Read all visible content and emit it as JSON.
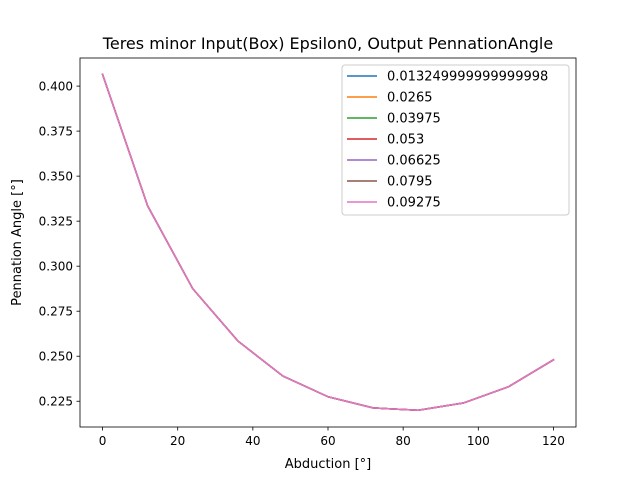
{
  "chart_data": {
    "type": "line",
    "title": "Teres minor Input(Box) Epsilon0, Output PennationAngle",
    "xlabel": "Abduction [°]",
    "ylabel": "Pennation Angle [°]",
    "xlim": [
      -6,
      126
    ],
    "ylim": [
      0.2107,
      0.4156
    ],
    "xticks": [
      0,
      20,
      40,
      60,
      80,
      100,
      120
    ],
    "xtick_labels": [
      "0",
      "20",
      "40",
      "60",
      "80",
      "100",
      "120"
    ],
    "yticks": [
      0.225,
      0.25,
      0.275,
      0.3,
      0.325,
      0.35,
      0.375,
      0.4
    ],
    "ytick_labels": [
      "0.225",
      "0.250",
      "0.275",
      "0.300",
      "0.325",
      "0.350",
      "0.375",
      "0.400"
    ],
    "grid": false,
    "legend_position": "top-right",
    "x": [
      0,
      12,
      24,
      36,
      48,
      60,
      72,
      84,
      96,
      108,
      120
    ],
    "series": [
      {
        "name": "0.013249999999999998",
        "color": "#1f77b4",
        "values": [
          0.4065,
          0.3335,
          0.2875,
          0.2585,
          0.239,
          0.2275,
          0.2213,
          0.22,
          0.224,
          0.233,
          0.248
        ]
      },
      {
        "name": "0.0265",
        "color": "#ff7f0e",
        "values": [
          0.4065,
          0.3335,
          0.2875,
          0.2585,
          0.239,
          0.2275,
          0.2213,
          0.22,
          0.224,
          0.233,
          0.248
        ]
      },
      {
        "name": "0.03975",
        "color": "#2ca02c",
        "values": [
          0.4065,
          0.3335,
          0.2875,
          0.2585,
          0.239,
          0.2275,
          0.2213,
          0.22,
          0.224,
          0.233,
          0.248
        ]
      },
      {
        "name": "0.053",
        "color": "#d62728",
        "values": [
          0.4065,
          0.3335,
          0.2875,
          0.2585,
          0.239,
          0.2275,
          0.2213,
          0.22,
          0.224,
          0.233,
          0.248
        ]
      },
      {
        "name": "0.06625",
        "color": "#9467bd",
        "values": [
          0.4065,
          0.3335,
          0.2875,
          0.2585,
          0.239,
          0.2275,
          0.2213,
          0.22,
          0.224,
          0.233,
          0.248
        ]
      },
      {
        "name": "0.0795",
        "color": "#8c564b",
        "values": [
          0.4065,
          0.3335,
          0.2875,
          0.2585,
          0.239,
          0.2275,
          0.2213,
          0.22,
          0.224,
          0.233,
          0.248
        ]
      },
      {
        "name": "0.09275",
        "color": "#e377c2",
        "values": [
          0.4065,
          0.3335,
          0.2875,
          0.2585,
          0.239,
          0.2275,
          0.2213,
          0.22,
          0.224,
          0.233,
          0.248
        ]
      }
    ]
  }
}
